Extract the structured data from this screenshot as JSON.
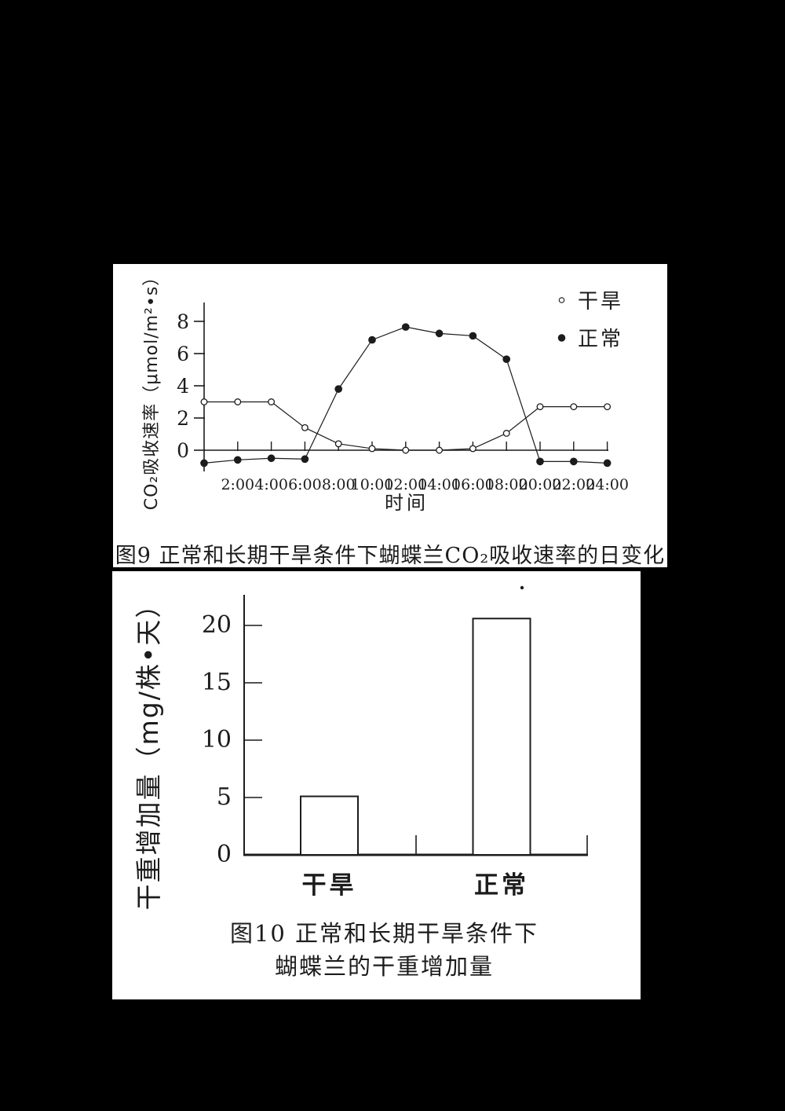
{
  "page": {
    "background": "#000000",
    "panel_background": "#ffffff",
    "ink": "#1c1c1c"
  },
  "chart_data": [
    {
      "type": "line",
      "figure_label": "图9",
      "caption": "图9 正常和长期干旱条件下蝴蝶兰CO₂吸收速率的日变化",
      "xlabel": "时间",
      "ylabel": "CO₂吸收速率（μmol/m²•s）",
      "x_hours": [
        0,
        2,
        4,
        6,
        8,
        10,
        12,
        14,
        16,
        18,
        20,
        22,
        24
      ],
      "x_tick_labels": [
        "2:00",
        "4:00",
        "6:00",
        "8:00",
        "10:00",
        "12:00",
        "14:00",
        "16:00",
        "18:00",
        "20:00",
        "22:00",
        "24:00"
      ],
      "y_ticks": [
        0,
        2,
        4,
        6,
        8
      ],
      "ylim": [
        -1.2,
        9.3
      ],
      "xlim": [
        0,
        24
      ],
      "grid": false,
      "legend_position": "top-right",
      "series": [
        {
          "name": "干旱",
          "key": "drought",
          "marker": "open-circle",
          "values": [
            3.0,
            3.0,
            3.0,
            1.4,
            0.4,
            0.1,
            0.0,
            0.0,
            0.1,
            1.05,
            2.7,
            2.7,
            2.7
          ]
        },
        {
          "name": "正常",
          "key": "normal",
          "marker": "filled-circle",
          "values": [
            -0.8,
            -0.6,
            -0.5,
            -0.55,
            3.8,
            6.85,
            7.65,
            7.25,
            7.1,
            5.65,
            -0.7,
            -0.7,
            -0.8
          ]
        }
      ]
    },
    {
      "type": "bar",
      "figure_label": "图10",
      "caption_line1": "图10 正常和长期干旱条件下",
      "caption_line2": "蝴蝶兰的干重增加量",
      "ylabel": "干重增加量（mg/株•天）",
      "categories": [
        "干旱",
        "正常"
      ],
      "category_keys": [
        "drought",
        "normal"
      ],
      "values": [
        5.1,
        20.6
      ],
      "y_ticks": [
        0,
        5,
        10,
        15,
        20
      ],
      "ylim": [
        0,
        22.8
      ],
      "grid": false,
      "bar_fill": "#ffffff"
    }
  ]
}
